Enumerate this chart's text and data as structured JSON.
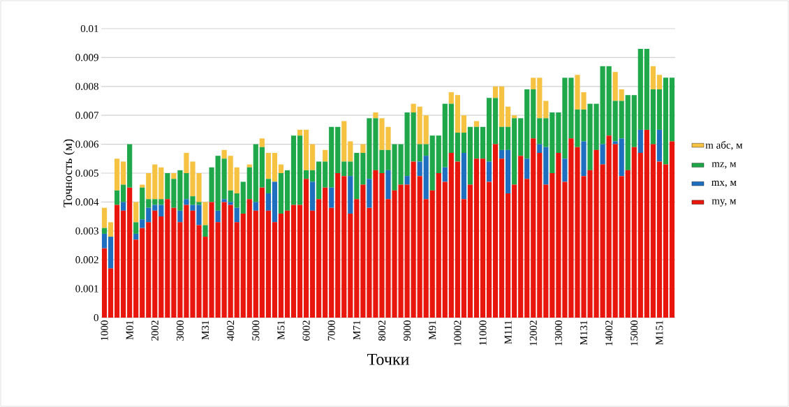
{
  "chart_data": {
    "type": "bar",
    "stacked": true,
    "xlabel": "Точки",
    "ylabel": "Точность (м)",
    "categories": [
      "1000",
      null,
      null,
      null,
      "M01",
      null,
      null,
      null,
      "2002",
      null,
      null,
      null,
      "3000",
      null,
      null,
      null,
      "M31",
      null,
      null,
      null,
      "4002",
      null,
      null,
      null,
      "5000",
      null,
      null,
      null,
      "M51",
      null,
      null,
      null,
      "6002",
      null,
      null,
      null,
      "7000",
      null,
      null,
      null,
      "M71",
      null,
      null,
      null,
      "8002",
      null,
      null,
      null,
      "9000",
      null,
      null,
      null,
      "M91",
      null,
      null,
      null,
      "10002",
      null,
      null,
      null,
      "11000",
      null,
      null,
      null,
      "M111",
      null,
      null,
      null,
      "12002",
      null,
      null,
      null,
      "13000",
      null,
      null,
      null,
      "M131",
      null,
      null,
      null,
      "14002",
      null,
      null,
      null,
      "15000",
      null,
      null,
      null,
      "M151",
      null,
      null
    ],
    "series": [
      {
        "name": "my, м",
        "color": "#e8160c",
        "values": [
          0.0024,
          0.0017,
          0.0039,
          0.0037,
          0.0045,
          0.0027,
          0.0031,
          0.0033,
          0.0037,
          0.0035,
          0.0041,
          0.0038,
          0.0033,
          0.0039,
          0.0037,
          0.0032,
          0.0028,
          0.004,
          0.0033,
          0.004,
          0.0039,
          0.0033,
          0.0036,
          0.0041,
          0.0037,
          0.0045,
          0.0037,
          0.0033,
          0.0036,
          0.0037,
          0.0039,
          0.0039,
          0.0048,
          0.0037,
          0.0041,
          0.0045,
          0.0038,
          0.005,
          0.0049,
          0.0036,
          0.0041,
          0.0046,
          0.0038,
          0.0051,
          0.005,
          0.0041,
          0.0044,
          0.0046,
          0.0046,
          0.0054,
          0.0049,
          0.0041,
          0.0044,
          0.005,
          0.0047,
          0.0057,
          0.0054,
          0.0041,
          0.0046,
          0.0055,
          0.0055,
          0.0047,
          0.006,
          0.0055,
          0.0043,
          0.0046,
          0.0056,
          0.0048,
          0.0062,
          0.0057,
          0.0046,
          0.005,
          0.0057,
          0.0047,
          0.0062,
          0.0059,
          0.0049,
          0.0051,
          0.0058,
          0.0053,
          0.0063,
          0.006,
          0.0049,
          0.0051,
          0.0059,
          0.0057,
          0.0065,
          0.006,
          0.0054,
          0.0053,
          0.0061
        ]
      },
      {
        "name": "mx, м",
        "color": "#1f6fc0",
        "values": [
          0.0005,
          0.0011,
          0,
          0.0003,
          0,
          0.0002,
          0.0003,
          0.0005,
          0.0002,
          0.0004,
          0,
          0,
          0.0004,
          0.0002,
          0.0002,
          0.0007,
          0,
          0,
          0.0004,
          0.0001,
          0.0001,
          0.0005,
          0,
          0,
          0.0003,
          0,
          0.0006,
          0.0014,
          0,
          0,
          0,
          0,
          0,
          0.001,
          0,
          0,
          0.0007,
          0,
          0,
          0.0013,
          0,
          0,
          0.001,
          0,
          0,
          0.001,
          0,
          0,
          0.0003,
          0,
          0.0005,
          0.0015,
          0,
          0,
          0.0005,
          0,
          0,
          0.0016,
          0,
          0,
          0,
          0.0007,
          0,
          0.0003,
          0.0015,
          0,
          0,
          0.0007,
          0,
          0.0003,
          0.0013,
          0,
          0,
          0.0008,
          0,
          0,
          0.0012,
          0,
          0,
          0.0007,
          0,
          0.0001,
          0.0013,
          0,
          0,
          0.0008,
          0,
          0,
          0.0011,
          0,
          0
        ]
      },
      {
        "name": "mz, м",
        "color": "#1fa84a",
        "values": [
          0.0002,
          0,
          0.0005,
          0.0006,
          0.0015,
          0.0004,
          0.0011,
          0.0003,
          0.0002,
          0.0002,
          0.0009,
          0.001,
          0.0014,
          0.0009,
          0.0003,
          0.0001,
          0.0004,
          0.0012,
          0.0019,
          0.0014,
          0.0004,
          0.0005,
          0.0011,
          0.0011,
          0.002,
          0.0014,
          0.0005,
          0,
          0.0014,
          0.0014,
          0.0024,
          0.0024,
          0.0003,
          0.0004,
          0.0013,
          0.0009,
          0.0021,
          0.0016,
          0.0005,
          0.0005,
          0.0016,
          0.0011,
          0.0021,
          0.0018,
          0.0008,
          0.0007,
          0.0016,
          0.0014,
          0.0022,
          0.0017,
          0.0006,
          0.0004,
          0.0019,
          0.0013,
          0.0022,
          0.0017,
          0.001,
          0.0007,
          0.002,
          0.0011,
          0.0011,
          0.0022,
          0.0016,
          0.0008,
          0.0008,
          0.0023,
          0.0013,
          0.0024,
          0.0017,
          0.0009,
          0.001,
          0.0021,
          0.0014,
          0.0028,
          0.0021,
          0.0013,
          0.0011,
          0.0023,
          0.0016,
          0.0027,
          0.0024,
          0.0014,
          0.0013,
          0.0026,
          0.0018,
          0.0028,
          0.0028,
          0.0019,
          0.0014,
          0.003,
          0.0022
        ]
      },
      {
        "name": "m абс, м",
        "color": "#f5c242",
        "values": [
          0.0007,
          0.0005,
          0.0011,
          0.0008,
          0,
          0.0007,
          0.0001,
          0.0009,
          0.0012,
          0.0011,
          0,
          0.0002,
          0,
          0.0007,
          0.0012,
          0.001,
          0.0008,
          0,
          0,
          0.0003,
          0.0012,
          0.0009,
          0,
          0.0001,
          0,
          0.0003,
          0.0009,
          0.001,
          0.0003,
          0,
          0,
          0.0002,
          0.0014,
          0.0009,
          0,
          0.0004,
          0,
          0,
          0.0014,
          0.0007,
          0,
          0.0003,
          0,
          0.0002,
          0.0011,
          0.0008,
          0,
          0,
          0,
          0.0003,
          0.0013,
          0.001,
          0,
          0,
          0,
          0.0004,
          0.0013,
          0.0006,
          0,
          0.0002,
          0,
          0,
          0.0004,
          0.0014,
          0.0007,
          0.0001,
          0,
          0,
          0.0004,
          0.0014,
          0.0006,
          0,
          0,
          0,
          0,
          0.0012,
          0.0006,
          0,
          0,
          0,
          0,
          0.001,
          0.0004,
          0,
          0,
          0,
          0,
          0.0008,
          0.0005,
          0,
          0
        ]
      }
    ],
    "ylim": [
      0,
      0.01
    ],
    "yticks": [
      0,
      0.001,
      0.002,
      0.003,
      0.004,
      0.005,
      0.006,
      0.007,
      0.008,
      0.009,
      0.01
    ],
    "grid": "y",
    "legend": "right"
  }
}
